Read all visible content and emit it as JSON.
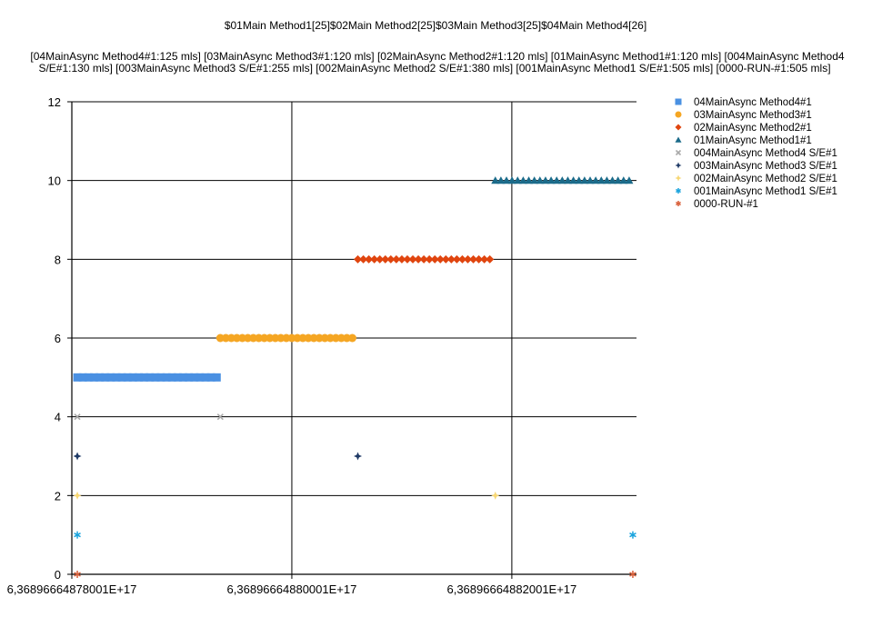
{
  "chart_data": {
    "type": "scatter",
    "title": "$01Main Method1[25]$02Main Method2[25]$03Main Method3[25]$04Main Method4[26]",
    "subtitle_lines": [
      "[04MainAsync Method4#1:125 mls]   [03MainAsync Method3#1:120 mls]   [02MainAsync Method2#1:120 mls]   [01MainAsync Method1#1:120 mls]   [004MainAsync Method4",
      "S/E#1:130 mls]   [003MainAsync Method3 S/E#1:255 mls]   [002MainAsync Method2 S/E#1:380 mls]   [001MainAsync Method1 S/E#1:505 mls]   [0000-RUN-#1:505 mls]"
    ],
    "xlim": [
      0,
      154
    ],
    "ylim": [
      0,
      12
    ],
    "y_ticks": [
      0,
      2,
      4,
      6,
      8,
      10,
      12
    ],
    "x_ticks": [
      {
        "value": 0,
        "label": "6,36896664878001E+17"
      },
      {
        "value": 60,
        "label": "6,36896664880001E+17"
      },
      {
        "value": 120,
        "label": "6,36896664882001E+17"
      }
    ],
    "grid": true,
    "legend_position": "right",
    "series": [
      {
        "name": "04MainAsync Method4#1",
        "marker": "square",
        "color": "#4a90e2",
        "y": 5,
        "points": {
          "from": 1.5,
          "to": 39.5,
          "count": 26
        }
      },
      {
        "name": "03MainAsync Method3#1",
        "marker": "circle",
        "color": "#f5a623",
        "y": 6,
        "points": {
          "from": 40.5,
          "to": 76.5,
          "count": 25
        }
      },
      {
        "name": "02MainAsync Method2#1",
        "marker": "diamond",
        "color": "#e0450f",
        "y": 8,
        "points": {
          "from": 78,
          "to": 114,
          "count": 25
        }
      },
      {
        "name": "01MainAsync Method1#1",
        "marker": "triangle",
        "color": "#1b6b8a",
        "y": 10,
        "points": {
          "from": 115.5,
          "to": 152,
          "count": 25
        }
      },
      {
        "name": "004MainAsync Method4 S/E#1",
        "marker": "x",
        "color": "#a9a9a9",
        "x": [
          1.5,
          40.5
        ],
        "y": [
          4,
          4
        ]
      },
      {
        "name": "003MainAsync Method3 S/E#1",
        "marker": "star4",
        "color": "#1f3a66",
        "x": [
          1.5,
          78
        ],
        "y": [
          3,
          3
        ]
      },
      {
        "name": "002MainAsync Method2 S/E#1",
        "marker": "star4",
        "color": "#f7d774",
        "x": [
          1.5,
          115.5
        ],
        "y": [
          2,
          2
        ]
      },
      {
        "name": "001MainAsync Method1 S/E#1",
        "marker": "asterisk",
        "color": "#1aa3dd",
        "x": [
          1.5,
          153
        ],
        "y": [
          1,
          1
        ]
      },
      {
        "name": "0000-RUN-#1",
        "marker": "asterisk",
        "color": "#d9603b",
        "x": [
          1.5,
          153
        ],
        "y": [
          0,
          0
        ]
      }
    ]
  }
}
